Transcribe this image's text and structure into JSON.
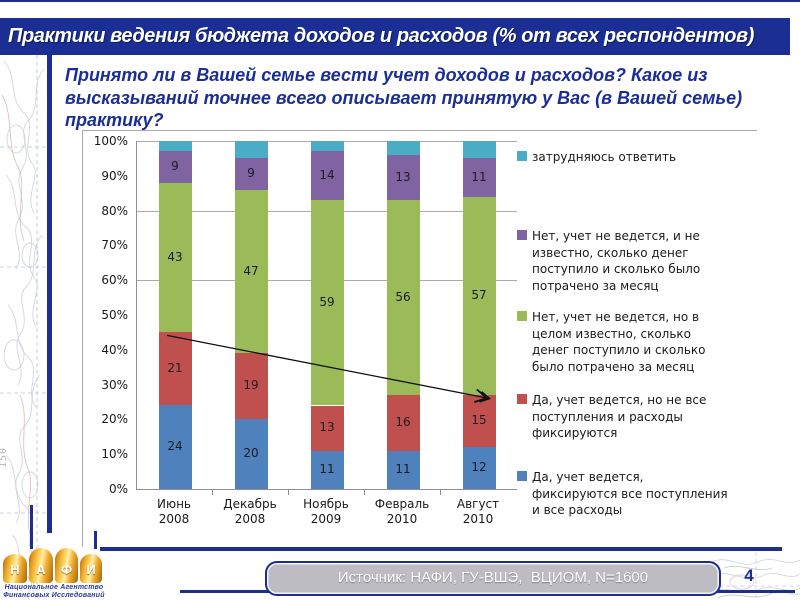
{
  "slide": {
    "title": "Практики ведения бюджета доходов и расходов (% от всех респондентов)",
    "question_lines": [
      "Принято ли в Вашей семье вести учет доходов и расходов? Какое из",
      "высказываний точнее всего описывает принятую у Вас (в Вашей семье)",
      "практику?"
    ]
  },
  "chart_data": {
    "type": "bar",
    "stacked": true,
    "unit": "%",
    "categories": [
      "Июнь 2008",
      "Декабрь 2008",
      "Ноябрь 2009",
      "Февраль 2010",
      "Август 2010"
    ],
    "category_lines": [
      [
        "Июнь",
        "2008"
      ],
      [
        "Декабрь",
        "2008"
      ],
      [
        "Ноябрь",
        "2009"
      ],
      [
        "Февраль",
        "2010"
      ],
      [
        "Август",
        "2010"
      ]
    ],
    "series": [
      {
        "name": "Да, учет ведется, фиксируются все поступления и все расходы",
        "color": "#4f81bd",
        "values": [
          24,
          20,
          11,
          11,
          12
        ],
        "show_labels": true
      },
      {
        "name": "Да, учет ведется, но не все поступления и расходы фиксируются",
        "color": "#c0504d",
        "values": [
          21,
          19,
          13,
          16,
          15
        ],
        "show_labels": true
      },
      {
        "name": "Нет, учет не ведется, но в целом известно, сколько денег поступило и сколько было потрачено за месяц",
        "color": "#9bbb59",
        "values": [
          43,
          47,
          59,
          56,
          57
        ],
        "show_labels": true
      },
      {
        "name": "Нет, учет не ведется, и не известно, сколько денег поступило и сколько было потрачено за месяц",
        "color": "#8064a2",
        "values": [
          9,
          9,
          14,
          13,
          11
        ],
        "show_labels": true
      },
      {
        "name": "затрудняюсь ответить",
        "color": "#4bacc6",
        "values": [
          3,
          5,
          3,
          4,
          5
        ],
        "show_labels": false
      }
    ],
    "y_axis": {
      "min": 0,
      "max": 100,
      "tick_step": 10,
      "label_suffix": "%",
      "tick_labels": [
        "100%",
        "90%",
        "80%",
        "70%",
        "60%",
        "50%",
        "40%",
        "30%",
        "20%",
        "10%",
        "0%"
      ]
    },
    "gridlines_pct": [
      100,
      80,
      60
    ],
    "legend_position": "right",
    "trend_arrow": {
      "from_category": 0,
      "from_pct": 45,
      "to_category": 4,
      "to_pct": 27
    }
  },
  "footer": {
    "source": "Источник: НАФИ, ГУ-ВШЭ,  ВЦИОМ, N=1600",
    "page_number": "4"
  },
  "logo": {
    "letters": [
      "Н",
      "А",
      "Ф",
      "И"
    ],
    "subtitle_line1": "Национальное Агентство",
    "subtitle_line2": "Финансовых Исследований"
  },
  "map": {
    "scale_label": "150"
  }
}
